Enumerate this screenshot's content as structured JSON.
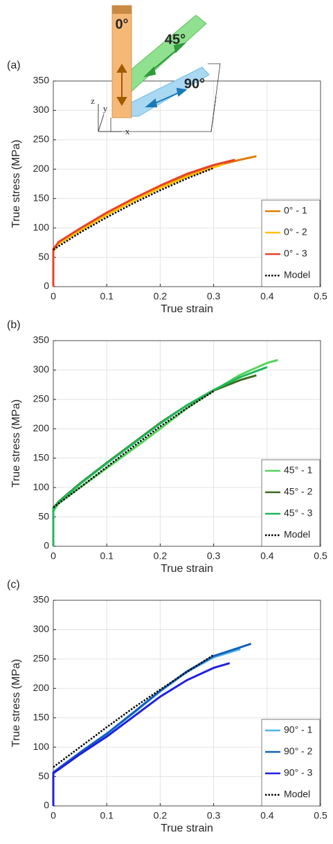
{
  "chart_data": [
    {
      "type": "line",
      "label": "(a)",
      "xlabel": "True strain",
      "ylabel": "True stress (MPa)",
      "xlim": [
        0,
        0.5
      ],
      "xticks": [
        0,
        0.1,
        0.2,
        0.3,
        0.4,
        0.5
      ],
      "ylim": [
        0,
        350
      ],
      "yticks": [
        0,
        50,
        100,
        150,
        200,
        250,
        300,
        350
      ],
      "grid": true,
      "legend": "lower right",
      "annotations": [
        "0°",
        "45°",
        "90°",
        "z",
        "y",
        "x"
      ],
      "series": [
        {
          "name": "0° - 1",
          "color": "#e07b00",
          "linestyle": "solid",
          "x": [
            0,
            0,
            0.01,
            0.05,
            0.1,
            0.15,
            0.2,
            0.25,
            0.3,
            0.35,
            0.38
          ],
          "values": [
            0,
            62,
            74,
            96,
            123,
            147,
            169,
            189,
            205,
            216,
            222
          ]
        },
        {
          "name": "0° - 2",
          "color": "#ffc000",
          "linestyle": "solid",
          "x": [
            0,
            0,
            0.01,
            0.05,
            0.1,
            0.15,
            0.2,
            0.25,
            0.3,
            0.32
          ],
          "values": [
            0,
            60,
            73,
            95,
            122,
            146,
            168,
            187,
            203,
            209
          ]
        },
        {
          "name": "0° - 3",
          "color": "#e8412a",
          "linestyle": "solid",
          "x": [
            0,
            0,
            0.01,
            0.05,
            0.1,
            0.15,
            0.2,
            0.25,
            0.3,
            0.34
          ],
          "values": [
            0,
            64,
            76,
            99,
            126,
            150,
            172,
            192,
            207,
            216
          ]
        },
        {
          "name": "Model",
          "color": "#000000",
          "linestyle": "dotted",
          "x": [
            0,
            0.05,
            0.1,
            0.15,
            0.2,
            0.25,
            0.3
          ],
          "values": [
            63,
            92,
            118,
            142,
            164,
            184,
            202
          ]
        }
      ]
    },
    {
      "type": "line",
      "label": "(b)",
      "xlabel": "True strain",
      "ylabel": "True stress (MPa)",
      "xlim": [
        0,
        0.5
      ],
      "xticks": [
        0,
        0.1,
        0.2,
        0.3,
        0.4,
        0.5
      ],
      "ylim": [
        0,
        350
      ],
      "yticks": [
        0,
        50,
        100,
        150,
        200,
        250,
        300,
        350
      ],
      "grid": true,
      "legend": "lower right",
      "series": [
        {
          "name": "45° - 1",
          "color": "#55d45a",
          "linestyle": "solid",
          "x": [
            0,
            0,
            0.01,
            0.05,
            0.1,
            0.15,
            0.2,
            0.25,
            0.3,
            0.35,
            0.4,
            0.42
          ],
          "values": [
            0,
            60,
            73,
            100,
            133,
            166,
            200,
            235,
            265,
            292,
            312,
            317
          ]
        },
        {
          "name": "45° - 2",
          "color": "#3a6b1a",
          "linestyle": "solid",
          "x": [
            0,
            0,
            0.01,
            0.05,
            0.1,
            0.15,
            0.2,
            0.25,
            0.3,
            0.35,
            0.38
          ],
          "values": [
            0,
            65,
            76,
            107,
            142,
            176,
            210,
            240,
            265,
            283,
            291
          ]
        },
        {
          "name": "45° - 3",
          "color": "#1db85a",
          "linestyle": "solid",
          "x": [
            0,
            0,
            0.01,
            0.05,
            0.1,
            0.15,
            0.2,
            0.25,
            0.3,
            0.35,
            0.4
          ],
          "values": [
            0,
            64,
            75,
            106,
            141,
            175,
            209,
            240,
            266,
            288,
            305
          ]
        },
        {
          "name": "Model",
          "color": "#000000",
          "linestyle": "dotted",
          "x": [
            0,
            0.05,
            0.1,
            0.15,
            0.2,
            0.25,
            0.3
          ],
          "values": [
            66,
            100,
            135,
            170,
            204,
            235,
            264
          ]
        }
      ]
    },
    {
      "type": "line",
      "label": "(c)",
      "xlabel": "True strain",
      "ylabel": "True stress (MPa)",
      "xlim": [
        0,
        0.5
      ],
      "xticks": [
        0,
        0.1,
        0.2,
        0.3,
        0.4,
        0.5
      ],
      "ylim": [
        0,
        350
      ],
      "yticks": [
        0,
        50,
        100,
        150,
        200,
        250,
        300,
        350
      ],
      "grid": true,
      "legend": "lower right",
      "series": [
        {
          "name": "90° - 1",
          "color": "#4fb4e6",
          "linestyle": "solid",
          "x": [
            0,
            0,
            0.01,
            0.05,
            0.1,
            0.15,
            0.2,
            0.25,
            0.3,
            0.35
          ],
          "values": [
            0,
            55,
            63,
            90,
            122,
            158,
            195,
            228,
            253,
            267
          ]
        },
        {
          "name": "90° - 2",
          "color": "#1060c0",
          "linestyle": "solid",
          "x": [
            0,
            0,
            0.01,
            0.05,
            0.1,
            0.15,
            0.2,
            0.25,
            0.3,
            0.35,
            0.37
          ],
          "values": [
            0,
            57,
            64,
            91,
            123,
            159,
            196,
            229,
            255,
            270,
            276
          ]
        },
        {
          "name": "90° - 3",
          "color": "#2020e0",
          "linestyle": "solid",
          "x": [
            0,
            0,
            0.01,
            0.05,
            0.1,
            0.15,
            0.2,
            0.25,
            0.3,
            0.33
          ],
          "values": [
            0,
            56,
            62,
            88,
            118,
            152,
            186,
            214,
            235,
            243
          ]
        },
        {
          "name": "Model",
          "color": "#000000",
          "linestyle": "dotted",
          "x": [
            0,
            0.05,
            0.1,
            0.15,
            0.2,
            0.25,
            0.3
          ],
          "values": [
            66,
            100,
            134,
            167,
            198,
            228,
            257
          ]
        }
      ]
    }
  ]
}
